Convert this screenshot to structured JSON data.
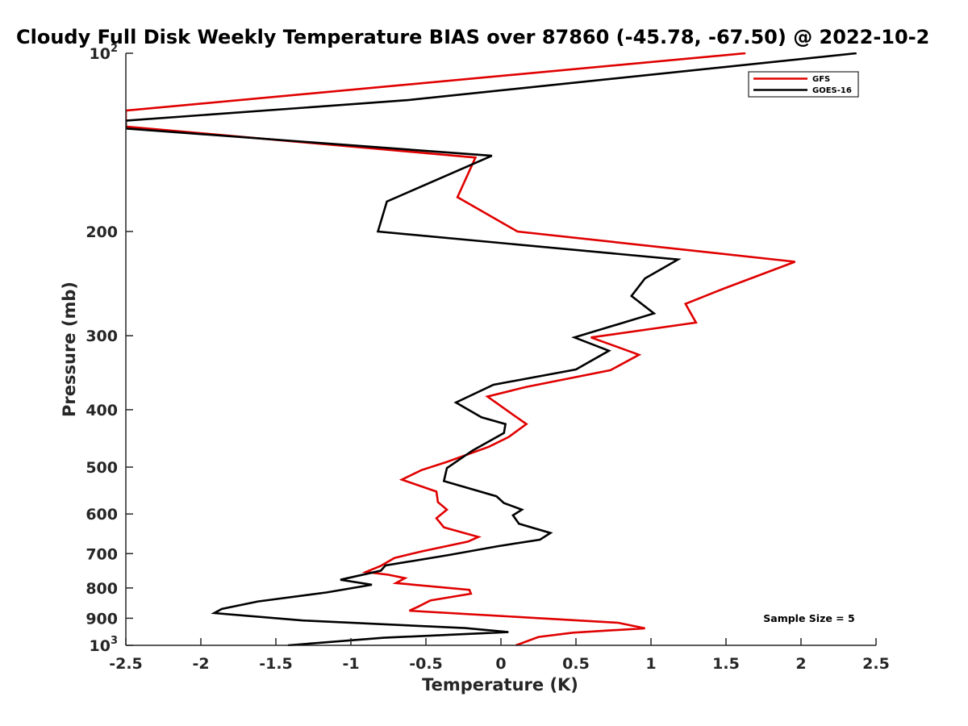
{
  "chart_data": {
    "type": "line",
    "title": "Cloudy Full Disk Weekly Temperature BIAS over 87860 (-45.78, -67.50) @ 2022-10-2",
    "xlabel": "Temperature (K)",
    "ylabel": "Pressure (mb)",
    "xlim": [
      -2.5,
      2.5
    ],
    "ylim": [
      100,
      1000
    ],
    "y_scale": "log",
    "y_reversed": true,
    "grid": false,
    "legend_position": "top-right",
    "x_ticks": [
      {
        "v": -2.5,
        "label": "-2.5"
      },
      {
        "v": -2,
        "label": "-2"
      },
      {
        "v": -1.5,
        "label": "-1.5"
      },
      {
        "v": -1,
        "label": "-1"
      },
      {
        "v": -0.5,
        "label": "-0.5"
      },
      {
        "v": 0,
        "label": "0"
      },
      {
        "v": 0.5,
        "label": "0.5"
      },
      {
        "v": 1,
        "label": "1"
      },
      {
        "v": 1.5,
        "label": "1.5"
      },
      {
        "v": 2,
        "label": "2"
      },
      {
        "v": 2.5,
        "label": "2.5"
      }
    ],
    "y_ticks": [
      {
        "v": 100,
        "base": "10",
        "exp": "2"
      },
      {
        "v": 200,
        "label": "200"
      },
      {
        "v": 300,
        "label": "300"
      },
      {
        "v": 400,
        "label": "400"
      },
      {
        "v": 500,
        "label": "500"
      },
      {
        "v": 600,
        "label": "600"
      },
      {
        "v": 700,
        "label": "700"
      },
      {
        "v": 800,
        "label": "800"
      },
      {
        "v": 900,
        "label": "900"
      },
      {
        "v": 1000,
        "base": "10",
        "exp": "3"
      }
    ],
    "series": [
      {
        "name": "GFS",
        "color": "#e00000",
        "points": [
          [
            1.63,
            100
          ],
          [
            -2.5,
            125
          ],
          [
            -2.5,
            133
          ],
          [
            -0.17,
            150
          ],
          [
            -0.29,
            175
          ],
          [
            0.11,
            200
          ],
          [
            1.96,
            225
          ],
          [
            1.48,
            250
          ],
          [
            1.23,
            265
          ],
          [
            1.3,
            285
          ],
          [
            0.6,
            302
          ],
          [
            0.92,
            323
          ],
          [
            0.73,
            343
          ],
          [
            0.17,
            366
          ],
          [
            -0.09,
            380
          ],
          [
            0.07,
            406
          ],
          [
            0.17,
            423
          ],
          [
            0.05,
            445
          ],
          [
            -0.08,
            462
          ],
          [
            -0.36,
            490
          ],
          [
            -0.53,
            506
          ],
          [
            -0.66,
            525
          ],
          [
            -0.43,
            550
          ],
          [
            -0.42,
            573
          ],
          [
            -0.36,
            590
          ],
          [
            -0.43,
            610
          ],
          [
            -0.38,
            632
          ],
          [
            -0.15,
            656
          ],
          [
            -0.22,
            668
          ],
          [
            -0.53,
            694
          ],
          [
            -0.71,
            712
          ],
          [
            -0.8,
            734
          ],
          [
            -0.9,
            752
          ],
          [
            -0.75,
            760
          ],
          [
            -0.64,
            770
          ],
          [
            -0.7,
            785
          ],
          [
            -0.21,
            806
          ],
          [
            -0.2,
            818
          ],
          [
            -0.47,
            840
          ],
          [
            -0.55,
            860
          ],
          [
            -0.61,
            874
          ],
          [
            0.78,
            916
          ],
          [
            0.96,
            936
          ],
          [
            0.48,
            952
          ],
          [
            0.25,
            968
          ],
          [
            0.1,
            1000
          ]
        ]
      },
      {
        "name": "GOES-16",
        "color": "#000000",
        "points": [
          [
            2.37,
            100
          ],
          [
            -0.62,
            120
          ],
          [
            -2.5,
            130
          ],
          [
            -2.5,
            134
          ],
          [
            -0.06,
            149
          ],
          [
            -0.76,
            178
          ],
          [
            -0.82,
            200
          ],
          [
            1.18,
            223
          ],
          [
            0.96,
            240
          ],
          [
            0.87,
            257
          ],
          [
            1.02,
            275
          ],
          [
            0.49,
            302
          ],
          [
            0.72,
            318
          ],
          [
            0.5,
            342
          ],
          [
            -0.05,
            363
          ],
          [
            -0.3,
            389
          ],
          [
            -0.13,
            412
          ],
          [
            0.03,
            423
          ],
          [
            0.02,
            438
          ],
          [
            -0.19,
            469
          ],
          [
            -0.36,
            502
          ],
          [
            -0.38,
            528
          ],
          [
            -0.03,
            560
          ],
          [
            0.02,
            575
          ],
          [
            0.14,
            590
          ],
          [
            0.08,
            603
          ],
          [
            0.12,
            623
          ],
          [
            0.33,
            646
          ],
          [
            0.26,
            663
          ],
          [
            -0.02,
            680
          ],
          [
            -0.35,
            704
          ],
          [
            -0.77,
            733
          ],
          [
            -0.8,
            748
          ],
          [
            -1.07,
            775
          ],
          [
            -0.86,
            790
          ],
          [
            -1.16,
            814
          ],
          [
            -1.62,
            843
          ],
          [
            -1.86,
            868
          ],
          [
            -1.91,
            882
          ],
          [
            -1.32,
            908
          ],
          [
            -0.24,
            935
          ],
          [
            0.05,
            950
          ],
          [
            -0.78,
            971
          ],
          [
            -1.42,
            1000
          ]
        ]
      }
    ],
    "annotations": [
      {
        "text": "Sample Size = 5"
      }
    ]
  }
}
